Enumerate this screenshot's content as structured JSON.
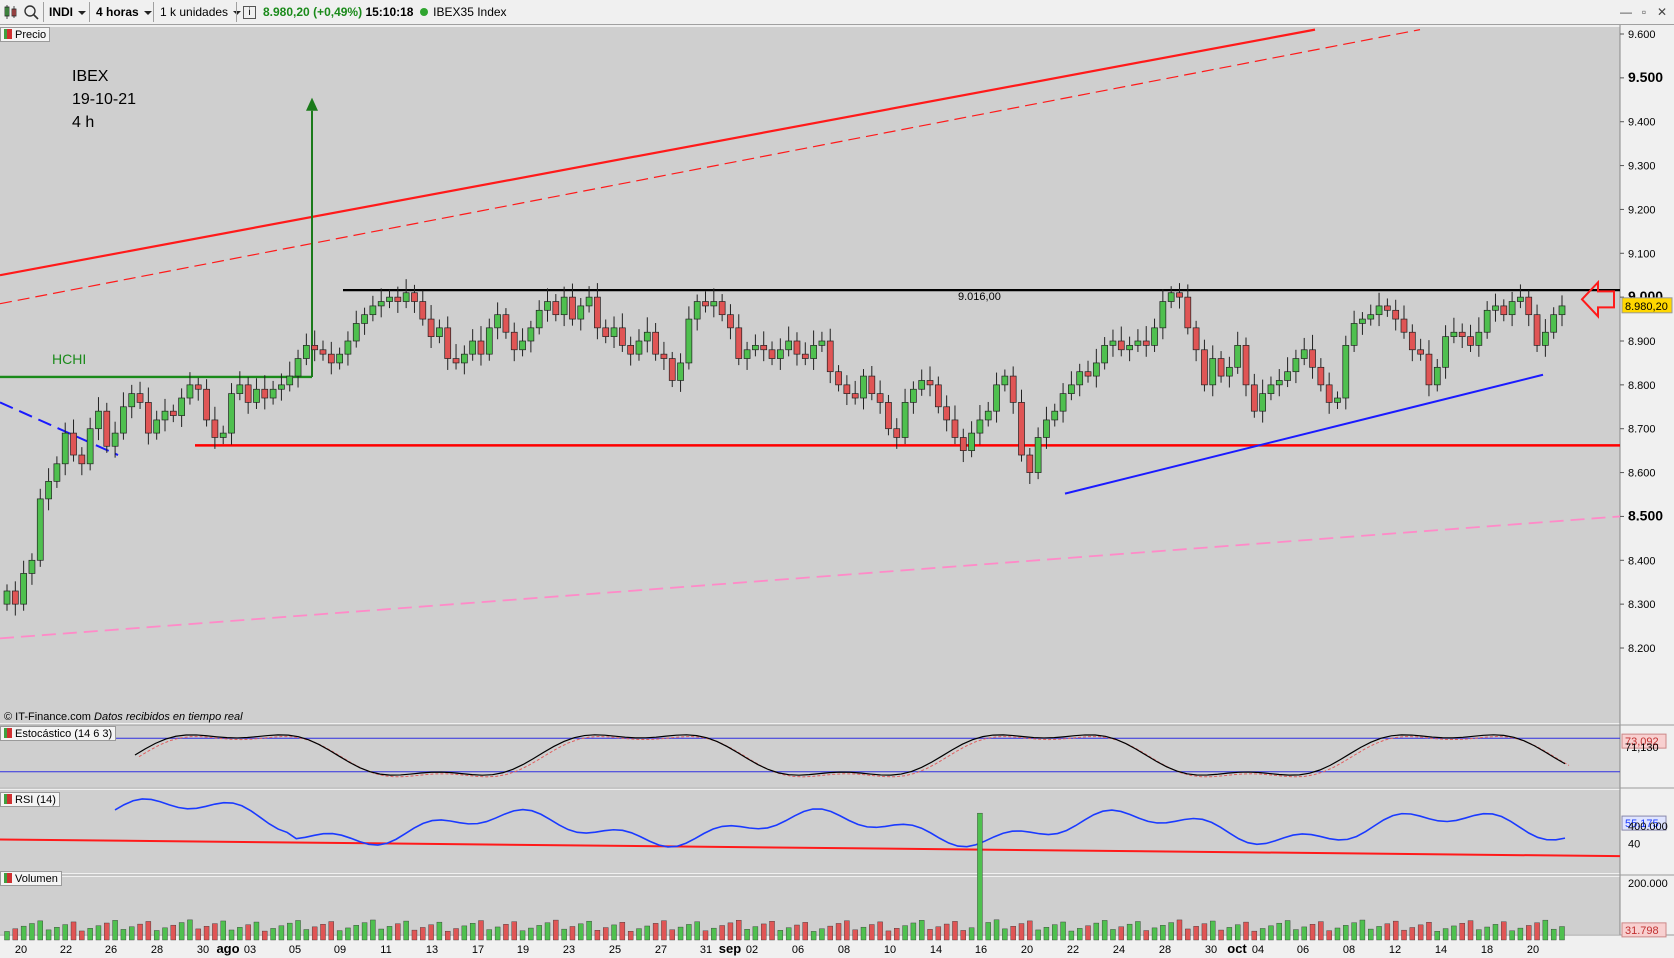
{
  "toolbar": {
    "symbol": "INDI",
    "interval": "4 horas",
    "units": "1 k unidades",
    "info_icon": "info-icon",
    "price": "8.980,20",
    "change": "(+0,49%)",
    "time": "15:10:18",
    "instrument": "IBEX35 Index",
    "status_color": "#2fa52f",
    "window_buttons": [
      "minimize-icon",
      "maximize-icon",
      "close-icon"
    ]
  },
  "panels": {
    "price": "Precio",
    "stoch": "Estocástico (14 6 3)",
    "rsi": "RSI (14)",
    "volume": "Volumen"
  },
  "copyright": {
    "source": "© IT-Finance.com",
    "note": "Datos recibidos en tiempo real"
  },
  "annotations": {
    "title_lines": [
      "IBEX",
      "19-10-21",
      "4 h"
    ],
    "pattern_label": "HCHI",
    "resistance_label": "9.016,00"
  },
  "current": {
    "price": "8.980,20",
    "stoch_k": "73,092",
    "stoch_d": "71,130",
    "rsi": "55,175",
    "volume": "31.798"
  },
  "colors": {
    "background": "#cfcfcf",
    "bull": "#4fc04f",
    "bear": "#e05555",
    "resistance": "#000000",
    "support": "#ff0000",
    "trend_blue": "#1a1aff",
    "neckline": "#1a8a1a",
    "pink": "#ff8ac8",
    "price_tag": "#ffd700"
  },
  "chart_data": [
    {
      "type": "candlestick",
      "title": "IBEX",
      "yticks": [
        "8.200",
        "8.300",
        "8.400",
        "8.500",
        "8.600",
        "8.700",
        "8.800",
        "8.900",
        "9.000",
        "9.100",
        "9.200",
        "9.300",
        "9.400",
        "9.500",
        "9.600"
      ],
      "ylim": [
        8180,
        9620
      ],
      "xticks": [
        "20",
        "22",
        "26",
        "28",
        "30",
        "ago",
        "03",
        "05",
        "09",
        "11",
        "13",
        "17",
        "19",
        "23",
        "25",
        "27",
        "31",
        "sep",
        "02",
        "06",
        "08",
        "10",
        "14",
        "16",
        "20",
        "22",
        "24",
        "28",
        "30",
        "oct",
        "04",
        "06",
        "08",
        "12",
        "14",
        "18",
        "20"
      ],
      "resistance": 9016,
      "support": 8662,
      "neckline": 8818,
      "close_sequence": [
        8330,
        8300,
        8370,
        8400,
        8540,
        8580,
        8620,
        8690,
        8640,
        8620,
        8700,
        8740,
        8660,
        8690,
        8750,
        8780,
        8760,
        8690,
        8720,
        8740,
        8730,
        8770,
        8800,
        8790,
        8720,
        8680,
        8690,
        8780,
        8800,
        8760,
        8790,
        8770,
        8790,
        8800,
        8820,
        8860,
        8890,
        8880,
        8870,
        8850,
        8870,
        8900,
        8940,
        8960,
        8980,
        8990,
        9000,
        8990,
        9010,
        8990,
        8950,
        8910,
        8930,
        8860,
        8850,
        8870,
        8900,
        8870,
        8930,
        8960,
        8920,
        8880,
        8900,
        8930,
        8970,
        8990,
        8960,
        9000,
        8950,
        8980,
        9000,
        8930,
        8910,
        8930,
        8890,
        8870,
        8900,
        8920,
        8870,
        8860,
        8810,
        8850,
        8950,
        8990,
        8980,
        8990,
        8960,
        8930,
        8860,
        8880,
        8890,
        8880,
        8860,
        8880,
        8900,
        8870,
        8860,
        8890,
        8900,
        8830,
        8800,
        8780,
        8770,
        8820,
        8780,
        8760,
        8700,
        8680,
        8760,
        8790,
        8810,
        8800,
        8750,
        8720,
        8680,
        8650,
        8690,
        8720,
        8740,
        8800,
        8820,
        8760,
        8640,
        8600,
        8680,
        8720,
        8740,
        8780,
        8800,
        8830,
        8820,
        8850,
        8890,
        8900,
        8880,
        8890,
        8900,
        8890,
        8930,
        8990,
        9010,
        9000,
        8930,
        8880,
        8800,
        8860,
        8820,
        8840,
        8890,
        8800,
        8740,
        8780,
        8800,
        8810,
        8830,
        8860,
        8880,
        8840,
        8800,
        8760,
        8770,
        8890,
        8940,
        8950,
        8960,
        8980,
        8970,
        8950,
        8920,
        8880,
        8870,
        8800,
        8840,
        8910,
        8920,
        8910,
        8890,
        8920,
        8970,
        8980,
        8960,
        8990,
        9000,
        8960,
        8890,
        8920,
        8960,
        8980
      ]
    },
    {
      "type": "line",
      "title": "Estocástico (14 6 3)",
      "ylim": [
        0,
        100
      ],
      "levels": [
        80,
        20
      ],
      "series": [
        {
          "name": "Estocástico (14 6 3)",
          "last": 73.092
        }
      ]
    },
    {
      "type": "line",
      "title": "RSI (14)",
      "yticks": [
        "40"
      ],
      "ylim": [
        20,
        80
      ],
      "series": [
        {
          "name": "RSI (14)",
          "last": 55.175
        }
      ]
    },
    {
      "type": "bar",
      "title": "Volumen",
      "yticks": [
        "200.000",
        "400.000"
      ],
      "ylim": [
        0,
        450000
      ],
      "series": [
        {
          "name": "Volumen",
          "last": 31798
        }
      ]
    }
  ]
}
